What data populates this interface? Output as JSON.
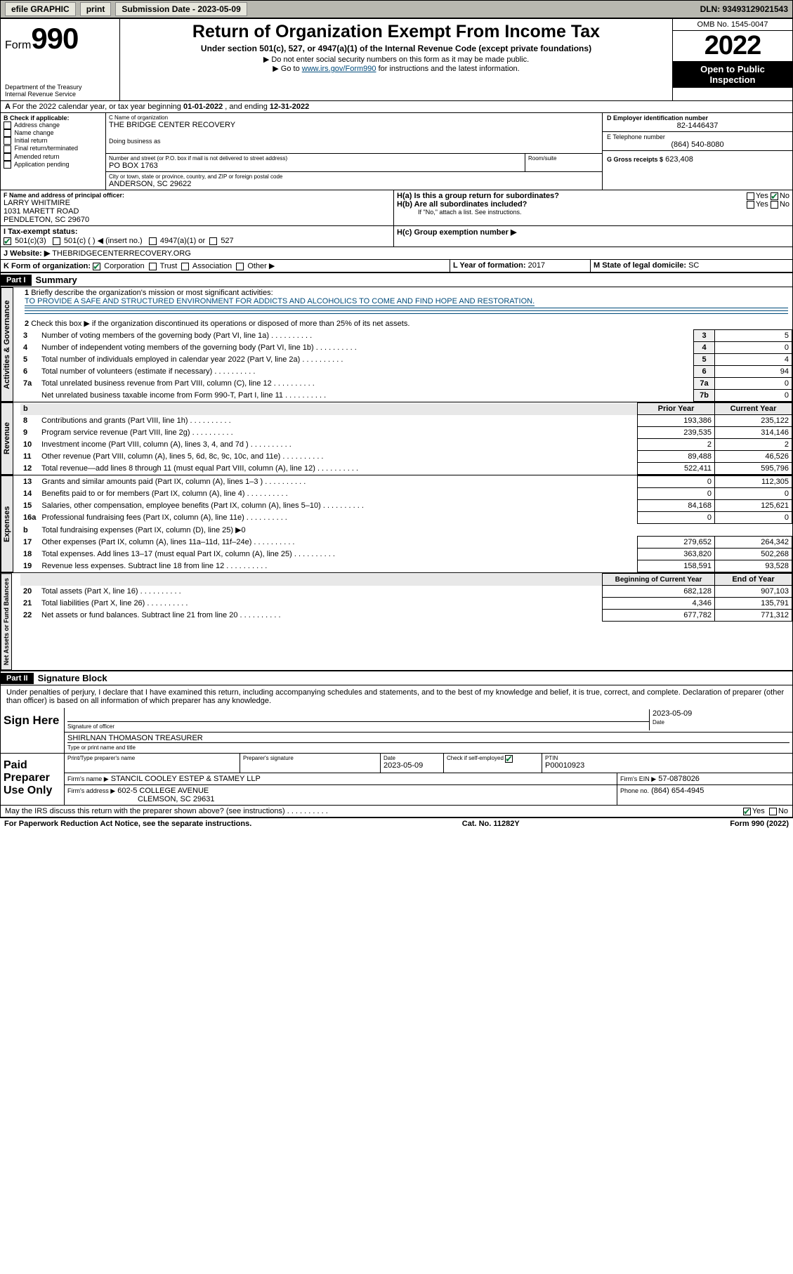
{
  "topbar": {
    "efile": "efile GRAPHIC",
    "print": "print",
    "sub_label": "Submission Date - 2023-05-09",
    "dln_label": "DLN: 93493129021543"
  },
  "header": {
    "form_label": "Form",
    "form_num": "990",
    "dept": "Department of the Treasury",
    "irs": "Internal Revenue Service",
    "title": "Return of Organization Exempt From Income Tax",
    "sub1": "Under section 501(c), 527, or 4947(a)(1) of the Internal Revenue Code (except private foundations)",
    "sub2": "▶ Do not enter social security numbers on this form as it may be made public.",
    "sub3_pre": "▶ Go to ",
    "sub3_link": "www.irs.gov/Form990",
    "sub3_post": " for instructions and the latest information.",
    "omb": "OMB No. 1545-0047",
    "year": "2022",
    "inspect1": "Open to Public",
    "inspect2": "Inspection"
  },
  "periodA": {
    "text_pre": "For the 2022 calendar year, or tax year beginning ",
    "begin": "01-01-2022",
    "mid": " , and ending ",
    "end": "12-31-2022"
  },
  "boxB": {
    "label": "B Check if applicable:",
    "opts": [
      "Address change",
      "Name change",
      "Initial return",
      "Final return/terminated",
      "Amended return",
      "Application pending"
    ]
  },
  "boxC": {
    "label": "C Name of organization",
    "name": "THE BRIDGE CENTER RECOVERY",
    "dba_label": "Doing business as",
    "street_label": "Number and street (or P.O. box if mail is not delivered to street address)",
    "room_label": "Room/suite",
    "street": "PO BOX 1763",
    "city_label": "City or town, state or province, country, and ZIP or foreign postal code",
    "city": "ANDERSON, SC  29622"
  },
  "boxD": {
    "label": "D Employer identification number",
    "val": "82-1446437"
  },
  "boxE": {
    "label": "E Telephone number",
    "val": "(864) 540-8080"
  },
  "boxG": {
    "label": "G Gross receipts $",
    "val": "623,408"
  },
  "boxF": {
    "label": "F Name and address of principal officer:",
    "name": "LARRY WHITMIRE",
    "addr1": "1031 MARETT ROAD",
    "addr2": "PENDLETON, SC  29670"
  },
  "boxH": {
    "ha": "H(a)  Is this a group return for subordinates?",
    "hb": "H(b)  Are all subordinates included?",
    "hb_note": "If \"No,\" attach a list. See instructions.",
    "hc": "H(c)  Group exemption number ▶",
    "yes": "Yes",
    "no": "No"
  },
  "boxI": {
    "label": "I    Tax-exempt status:",
    "o1": "501(c)(3)",
    "o2": "501(c) (  ) ◀ (insert no.)",
    "o3": "4947(a)(1) or",
    "o4": "527"
  },
  "boxJ": {
    "label": "J    Website: ▶",
    "val": "THEBRIDGECENTERRECOVERY.ORG"
  },
  "boxK": {
    "label": "K Form of organization:",
    "opts": [
      "Corporation",
      "Trust",
      "Association",
      "Other ▶"
    ]
  },
  "boxL": {
    "label": "L Year of formation:",
    "val": "2017"
  },
  "boxM": {
    "label": "M State of legal domicile:",
    "val": "SC"
  },
  "part1": {
    "hdr": "Part I",
    "title": "Summary",
    "l1": "Briefly describe the organization's mission or most significant activities:",
    "l1_val": "TO PROVIDE A SAFE AND STRUCTURED ENVIRONMENT FOR ADDICTS AND ALCOHOLICS TO COME AND FIND HOPE AND RESTORATION.",
    "l2": "Check this box ▶        if the organization discontinued its operations or disposed of more than 25% of its net assets.",
    "rows_simple": [
      {
        "n": "3",
        "t": "Number of voting members of the governing body (Part VI, line 1a)",
        "k": "3",
        "v": "5"
      },
      {
        "n": "4",
        "t": "Number of independent voting members of the governing body (Part VI, line 1b)",
        "k": "4",
        "v": "0"
      },
      {
        "n": "5",
        "t": "Total number of individuals employed in calendar year 2022 (Part V, line 2a)",
        "k": "5",
        "v": "4"
      },
      {
        "n": "6",
        "t": "Total number of volunteers (estimate if necessary)",
        "k": "6",
        "v": "94"
      },
      {
        "n": "7a",
        "t": "Total unrelated business revenue from Part VIII, column (C), line 12",
        "k": "7a",
        "v": "0"
      },
      {
        "n": "",
        "t": "Net unrelated business taxable income from Form 990-T, Part I, line 11",
        "k": "7b",
        "v": "0"
      }
    ],
    "pcy_hdr": {
      "b": "b",
      "prior": "Prior Year",
      "curr": "Current Year"
    },
    "revenue": [
      {
        "n": "8",
        "t": "Contributions and grants (Part VIII, line 1h)",
        "p": "193,386",
        "c": "235,122"
      },
      {
        "n": "9",
        "t": "Program service revenue (Part VIII, line 2g)",
        "p": "239,535",
        "c": "314,146"
      },
      {
        "n": "10",
        "t": "Investment income (Part VIII, column (A), lines 3, 4, and 7d )",
        "p": "2",
        "c": "2"
      },
      {
        "n": "11",
        "t": "Other revenue (Part VIII, column (A), lines 5, 6d, 8c, 9c, 10c, and 11e)",
        "p": "89,488",
        "c": "46,526"
      },
      {
        "n": "12",
        "t": "Total revenue—add lines 8 through 11 (must equal Part VIII, column (A), line 12)",
        "p": "522,411",
        "c": "595,796"
      }
    ],
    "expenses": [
      {
        "n": "13",
        "t": "Grants and similar amounts paid (Part IX, column (A), lines 1–3 )",
        "p": "0",
        "c": "112,305"
      },
      {
        "n": "14",
        "t": "Benefits paid to or for members (Part IX, column (A), line 4)",
        "p": "0",
        "c": "0"
      },
      {
        "n": "15",
        "t": "Salaries, other compensation, employee benefits (Part IX, column (A), lines 5–10)",
        "p": "84,168",
        "c": "125,621"
      },
      {
        "n": "16a",
        "t": "Professional fundraising fees (Part IX, column (A), line 11e)",
        "p": "0",
        "c": "0"
      },
      {
        "n": "b",
        "t": "Total fundraising expenses (Part IX, column (D), line 25) ▶0",
        "p": "",
        "c": "",
        "noval": true
      },
      {
        "n": "17",
        "t": "Other expenses (Part IX, column (A), lines 11a–11d, 11f–24e)",
        "p": "279,652",
        "c": "264,342"
      },
      {
        "n": "18",
        "t": "Total expenses. Add lines 13–17 (must equal Part IX, column (A), line 25)",
        "p": "363,820",
        "c": "502,268"
      },
      {
        "n": "19",
        "t": "Revenue less expenses. Subtract line 18 from line 12",
        "p": "158,591",
        "c": "93,528"
      }
    ],
    "na_hdr": {
      "prior": "Beginning of Current Year",
      "curr": "End of Year"
    },
    "netassets": [
      {
        "n": "20",
        "t": "Total assets (Part X, line 16)",
        "p": "682,128",
        "c": "907,103"
      },
      {
        "n": "21",
        "t": "Total liabilities (Part X, line 26)",
        "p": "4,346",
        "c": "135,791"
      },
      {
        "n": "22",
        "t": "Net assets or fund balances. Subtract line 21 from line 20",
        "p": "677,782",
        "c": "771,312"
      }
    ],
    "vtabs": {
      "ag": "Activities & Governance",
      "rev": "Revenue",
      "exp": "Expenses",
      "na": "Net Assets or\nFund Balances"
    }
  },
  "part2": {
    "hdr": "Part II",
    "title": "Signature Block",
    "decl": "Under penalties of perjury, I declare that I have examined this return, including accompanying schedules and statements, and to the best of my knowledge and belief, it is true, correct, and complete. Declaration of preparer (other than officer) is based on all information of which preparer has any knowledge.",
    "sign_here": "Sign Here",
    "sig_officer": "Signature of officer",
    "sig_date": "Date",
    "sig_date_val": "2023-05-09",
    "sig_name": "SHIRLNAN THOMASON  TREASURER",
    "sig_name_label": "Type or print name and title",
    "paid": "Paid Preparer Use Only",
    "pp_name_label": "Print/Type preparer's name",
    "pp_sig_label": "Preparer's signature",
    "pp_date_label": "Date",
    "pp_date": "2023-05-09",
    "pp_check": "Check         if self-employed",
    "pp_ptin_label": "PTIN",
    "pp_ptin": "P00010923",
    "firm_name_label": "Firm's name    ▶",
    "firm_name": "STANCIL COOLEY ESTEP & STAMEY LLP",
    "firm_ein_label": "Firm's EIN ▶",
    "firm_ein": "57-0878026",
    "firm_addr_label": "Firm's address ▶",
    "firm_addr1": "602-5 COLLEGE AVENUE",
    "firm_addr2": "CLEMSON, SC  29631",
    "firm_phone_label": "Phone no.",
    "firm_phone": "(864) 654-4945",
    "discuss": "May the IRS discuss this return with the preparer shown above? (see instructions)",
    "yes": "Yes",
    "no": "No"
  },
  "footer": {
    "pra": "For Paperwork Reduction Act Notice, see the separate instructions.",
    "cat": "Cat. No. 11282Y",
    "form": "Form 990 (2022)"
  }
}
